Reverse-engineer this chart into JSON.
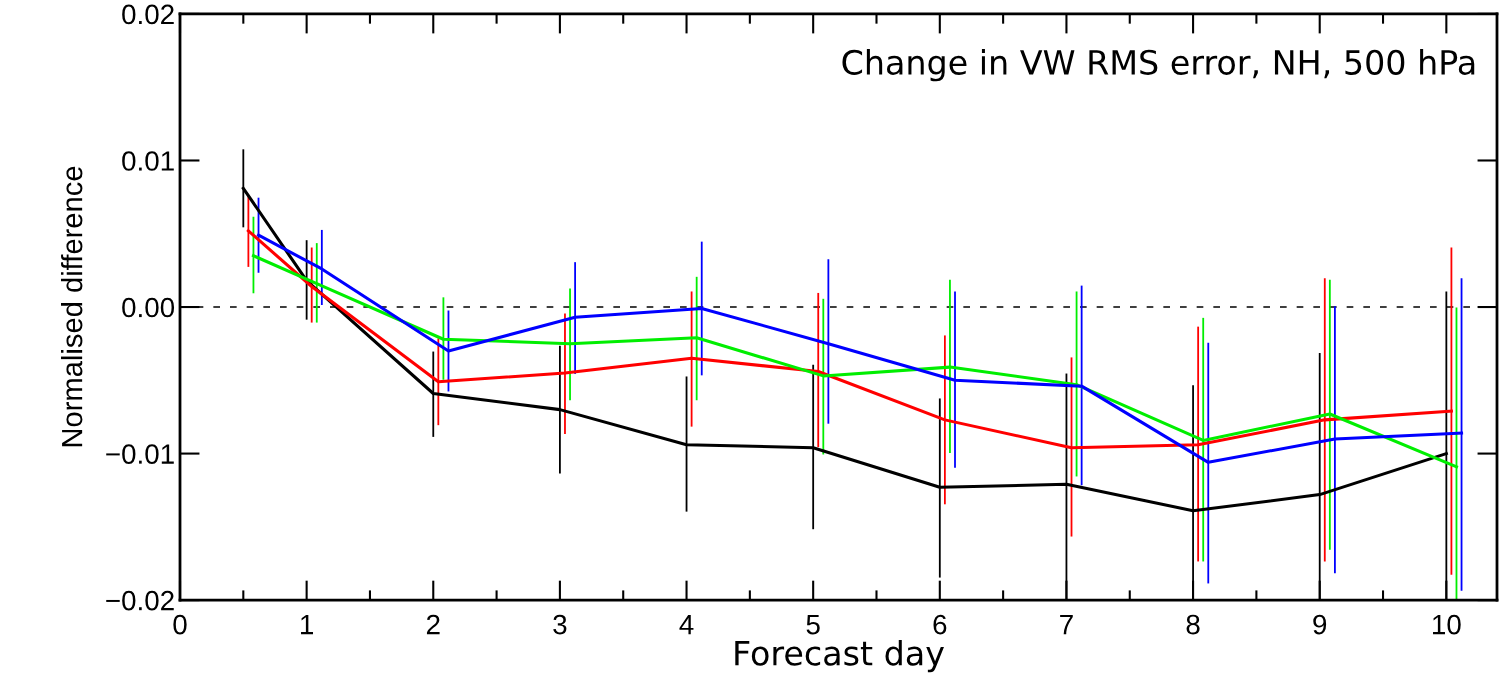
{
  "chart_data": {
    "type": "line",
    "title": "Change in VW RMS error, NH, 500 hPa",
    "xlabel": "Forecast day",
    "ylabel": "Normalised difference",
    "series": [
      {
        "color": "#000000",
        "x": [
          0.5,
          1,
          2,
          3,
          4,
          5,
          6,
          7,
          8,
          9,
          10
        ],
        "values": [
          0.0081,
          0.0018,
          -0.0059,
          -0.007,
          -0.0094,
          -0.0096,
          -0.0123,
          -0.0121,
          -0.0139,
          -0.0128,
          -0.01
        ],
        "errors": [
          [
            0.0055,
            0.0107
          ],
          [
            -0.0008,
            0.0045
          ],
          [
            -0.0088,
            -0.0031
          ],
          [
            -0.0113,
            -0.0027
          ],
          [
            -0.0139,
            -0.0048
          ],
          [
            -0.0151,
            -0.004
          ],
          [
            -0.0184,
            -0.0063
          ],
          [
            -0.02,
            -0.0046
          ],
          [
            -0.02,
            -0.0054
          ],
          [
            -0.02,
            -0.0032
          ],
          [
            -0.02,
            0.001
          ]
        ]
      },
      {
        "color": "#ff0000",
        "x": [
          0.54,
          1.04,
          2.04,
          3.04,
          4.04,
          5.04,
          6.04,
          7.04,
          8.04,
          9.04,
          10.04
        ],
        "values": [
          0.0052,
          0.0014,
          -0.0051,
          -0.0045,
          -0.0035,
          -0.0044,
          -0.0077,
          -0.0096,
          -0.0094,
          -0.0077,
          -0.0071
        ],
        "errors": [
          [
            0.0028,
            0.0076
          ],
          [
            -0.001,
            0.004
          ],
          [
            -0.008,
            -0.0022
          ],
          [
            -0.0086,
            -0.0005
          ],
          [
            -0.0081,
            0.001
          ],
          [
            -0.0095,
            0.0009
          ],
          [
            -0.0134,
            -0.002
          ],
          [
            -0.0156,
            -0.0035
          ],
          [
            -0.0173,
            -0.0014
          ],
          [
            -0.0173,
            0.0019
          ],
          [
            -0.0182,
            0.004
          ]
        ]
      },
      {
        "color": "#00ee00",
        "x": [
          0.58,
          1.08,
          2.08,
          3.08,
          4.08,
          5.08,
          6.08,
          7.08,
          8.08,
          9.08,
          10.08
        ],
        "values": [
          0.0035,
          0.0016,
          -0.0022,
          -0.0025,
          -0.0021,
          -0.0047,
          -0.0041,
          -0.0053,
          -0.0091,
          -0.0073,
          -0.0109
        ],
        "errors": [
          [
            0.001,
            0.0061
          ],
          [
            -0.001,
            0.0043
          ],
          [
            -0.0049,
            0.0006
          ],
          [
            -0.0063,
            0.0012
          ],
          [
            -0.0063,
            0.002
          ],
          [
            -0.01,
            0.0005
          ],
          [
            -0.0099,
            0.0018
          ],
          [
            -0.0115,
            0.001
          ],
          [
            -0.0173,
            -0.0008
          ],
          [
            -0.0165,
            0.0018
          ],
          [
            -0.02,
            -0.0001
          ]
        ]
      },
      {
        "color": "#0000ff",
        "x": [
          0.62,
          1.12,
          2.12,
          3.12,
          4.12,
          5.12,
          6.12,
          7.12,
          8.12,
          9.12,
          10.12
        ],
        "values": [
          0.0049,
          0.0026,
          -0.003,
          -0.0007,
          -0.0001,
          -0.0025,
          -0.005,
          -0.0054,
          -0.0106,
          -0.009,
          -0.0086
        ],
        "errors": [
          [
            0.0024,
            0.0074
          ],
          [
            0.0002,
            0.0052
          ],
          [
            -0.0057,
            -0.0003
          ],
          [
            -0.0045,
            0.003
          ],
          [
            -0.0046,
            0.0044
          ],
          [
            -0.0079,
            0.0032
          ],
          [
            -0.0109,
            0.001
          ],
          [
            -0.0121,
            0.0014
          ],
          [
            -0.0188,
            -0.0025
          ],
          [
            -0.0181,
            0.0
          ],
          [
            -0.0193,
            0.0019
          ]
        ]
      }
    ],
    "xlim": [
      0,
      10.4
    ],
    "ylim": [
      -0.02,
      0.02
    ],
    "xticks": [
      0,
      1,
      2,
      3,
      4,
      5,
      6,
      7,
      8,
      9,
      10
    ],
    "yticks": [
      {
        "value": -0.02,
        "label": "−0.02"
      },
      {
        "value": -0.01,
        "label": "−0.01"
      },
      {
        "value": 0,
        "label": "0.00"
      },
      {
        "value": 0.01,
        "label": "0.01"
      },
      {
        "value": 0.02,
        "label": "0.02"
      }
    ],
    "ref_lines": [
      {
        "axis": "y",
        "value": 0,
        "color": "#000000",
        "line_style": "dashed"
      }
    ],
    "grid": false,
    "legend": false,
    "marker": "none",
    "line_style": "solid"
  }
}
